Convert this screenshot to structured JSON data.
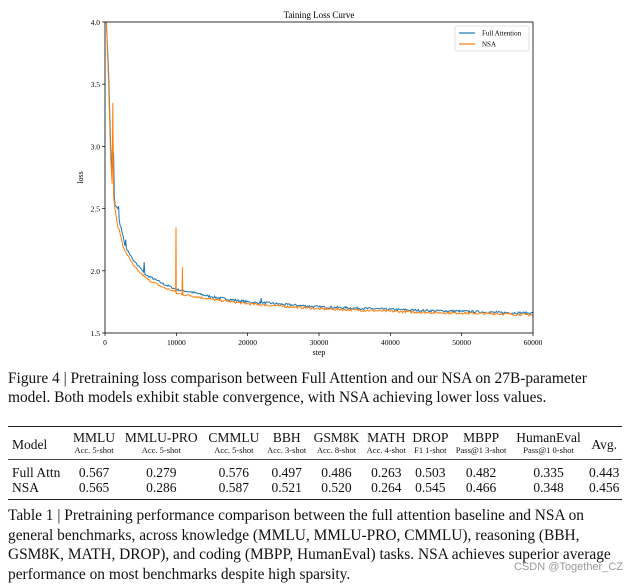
{
  "chart_data": {
    "type": "line",
    "title": "Taining Loss Curve",
    "xlabel": "step",
    "ylabel": "loss",
    "xlim": [
      0,
      60000
    ],
    "ylim": [
      1.5,
      4.0
    ],
    "xticks": [
      0,
      10000,
      20000,
      30000,
      40000,
      50000,
      60000
    ],
    "yticks": [
      1.5,
      2.0,
      2.5,
      3.0,
      3.5,
      4.0
    ],
    "ytick_labels": [
      "1.5",
      "2.0",
      "2.5",
      "3.0",
      "3.5",
      "4.0"
    ],
    "legend_placement": "top-right",
    "grid": false,
    "series": [
      {
        "name": "Full Attention",
        "color": "#1f77b4",
        "x": [
          200,
          500,
          800,
          1000,
          1200,
          1300,
          1400,
          1800,
          1900,
          2000,
          2500,
          2800,
          2900,
          3000,
          4000,
          5000,
          5400,
          5500,
          5600,
          6000,
          8000,
          10000,
          12000,
          15000,
          20000,
          21800,
          21900,
          22000,
          25000,
          30000,
          35000,
          40000,
          45000,
          50000,
          55000,
          60000
        ],
        "y": [
          4.0,
          3.6,
          3.0,
          2.8,
          2.95,
          2.6,
          2.53,
          2.5,
          2.52,
          2.4,
          2.29,
          2.2,
          2.25,
          2.18,
          2.08,
          2.02,
          1.99,
          2.07,
          1.97,
          1.96,
          1.9,
          1.85,
          1.83,
          1.79,
          1.75,
          1.74,
          1.78,
          1.745,
          1.73,
          1.71,
          1.7,
          1.69,
          1.68,
          1.675,
          1.665,
          1.66
        ]
      },
      {
        "name": "NSA",
        "color": "#ff7f0e",
        "x": [
          200,
          500,
          800,
          1000,
          1100,
          1200,
          1400,
          1800,
          2000,
          2500,
          3000,
          4000,
          5000,
          6000,
          8000,
          9900,
          9950,
          10000,
          10800,
          10850,
          10900,
          12000,
          15000,
          20000,
          25000,
          30000,
          35000,
          40000,
          45000,
          50000,
          55000,
          60000
        ],
        "y": [
          4.0,
          3.5,
          2.9,
          2.7,
          3.35,
          2.6,
          2.5,
          2.35,
          2.33,
          2.2,
          2.14,
          2.04,
          1.98,
          1.93,
          1.87,
          1.83,
          2.35,
          1.82,
          1.81,
          2.03,
          1.81,
          1.8,
          1.77,
          1.735,
          1.715,
          1.695,
          1.685,
          1.675,
          1.665,
          1.66,
          1.655,
          1.645
        ]
      }
    ]
  },
  "figure_caption": "Figure 4 | Pretraining loss comparison between Full Attention and our NSA on 27B-parameter model. Both models exhibit stable convergence, with NSA achieving lower loss values.",
  "table": {
    "model_header": "Model",
    "avg_header": "Avg.",
    "columns": [
      {
        "name": "MMLU",
        "metric": "Acc. 5-shot"
      },
      {
        "name": "MMLU-PRO",
        "metric": "Acc. 5-shot"
      },
      {
        "name": "CMMLU",
        "metric": "Acc. 5-shot"
      },
      {
        "name": "BBH",
        "metric": "Acc. 3-shot"
      },
      {
        "name": "GSM8K",
        "metric": "Acc. 8-shot"
      },
      {
        "name": "MATH",
        "metric": "Acc. 4-shot"
      },
      {
        "name": "DROP",
        "metric": "F1 1-shot"
      },
      {
        "name": "MBPP",
        "metric": "Pass@1 3-shot"
      },
      {
        "name": "HumanEval",
        "metric": "Pass@1 0-shot"
      }
    ],
    "rows": [
      {
        "model": "Full Attn",
        "values": [
          "0.567",
          "0.279",
          "0.576",
          "0.497",
          "0.486",
          "0.263",
          "0.503",
          "0.482",
          "0.335",
          "0.443"
        ],
        "bold": [
          true,
          false,
          false,
          false,
          false,
          false,
          false,
          true,
          false,
          false
        ]
      },
      {
        "model": "NSA",
        "values": [
          "0.565",
          "0.286",
          "0.587",
          "0.521",
          "0.520",
          "0.264",
          "0.545",
          "0.466",
          "0.348",
          "0.456"
        ],
        "bold": [
          false,
          true,
          true,
          true,
          true,
          true,
          true,
          false,
          true,
          true
        ]
      }
    ]
  },
  "table_caption": "Table 1 | Pretraining performance comparison between the full attention baseline and NSA on general benchmarks, across knowledge (MMLU, MMLU-PRO, CMMLU), reasoning (BBH, GSM8K, MATH, DROP), and coding (MBPP, HumanEval) tasks. NSA achieves superior average performance on most benchmarks despite high sparsity.",
  "watermark": "CSDN @Together_CZ"
}
